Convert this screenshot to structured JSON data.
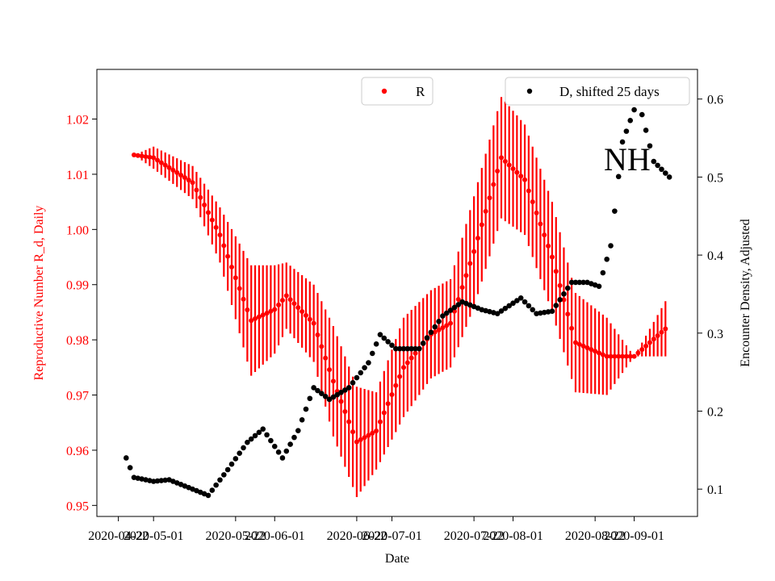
{
  "chart_data": {
    "type": "scatter",
    "xlabel": "Date",
    "ylabel_left": "Reproductive Number R_d, Daily",
    "ylabel_right": "Encounter Density, Adjusted",
    "annotation": "NH",
    "ylim_left": [
      0.948,
      1.029
    ],
    "ylim_right": [
      0.065,
      0.638
    ],
    "x_ticks": [
      "2020-04-22",
      "2020-05-01",
      "2020-05-22",
      "2020-06-01",
      "2020-06-22",
      "2020-07-01",
      "2020-07-22",
      "2020-08-01",
      "2020-08-22",
      "2020-09-01"
    ],
    "y_ticks_left": [
      "0.95",
      "0.96",
      "0.97",
      "0.98",
      "0.99",
      "1.00",
      "1.01",
      "1.02"
    ],
    "y_ticks_right": [
      "0.1",
      "0.2",
      "0.3",
      "0.4",
      "0.5",
      "0.6"
    ],
    "colors": {
      "R": "#ff0000",
      "D": "#000000",
      "left_axis": "#ff0000",
      "right_axis": "#000000"
    },
    "legend": [
      {
        "label": "R",
        "color": "#ff0000",
        "placement": "upper-center"
      },
      {
        "label": "D, shifted 25 days",
        "color": "#000000",
        "placement": "upper-right"
      }
    ],
    "R_series": {
      "name": "R",
      "axis": "left",
      "x": [
        "2020-04-26",
        "2020-05-01",
        "2020-05-11",
        "2020-05-18",
        "2020-05-26",
        "2020-06-01",
        "2020-06-04",
        "2020-06-11",
        "2020-06-16",
        "2020-06-22",
        "2020-06-27",
        "2020-07-04",
        "2020-07-11",
        "2020-07-16",
        "2020-07-22",
        "2020-07-29",
        "2020-08-04",
        "2020-08-11",
        "2020-08-17",
        "2020-08-25",
        "2020-09-01",
        "2020-09-09"
      ],
      "y": [
        1.0135,
        1.013,
        1.0085,
        0.999,
        0.9835,
        0.9855,
        0.988,
        0.983,
        0.9725,
        0.9615,
        0.9635,
        0.975,
        0.981,
        0.983,
        0.996,
        1.013,
        1.009,
        0.995,
        0.9795,
        0.977,
        0.977,
        0.982
      ],
      "err": [
        0.0,
        0.002,
        0.003,
        0.005,
        0.01,
        0.008,
        0.006,
        0.007,
        0.01,
        0.01,
        0.007,
        0.009,
        0.008,
        0.008,
        0.01,
        0.011,
        0.01,
        0.01,
        0.009,
        0.007,
        0.0,
        0.005
      ]
    },
    "D_series": {
      "name": "D, shifted 25 days",
      "axis": "right",
      "x": [
        "2020-04-24",
        "2020-04-26",
        "2020-05-01",
        "2020-05-05",
        "2020-05-11",
        "2020-05-15",
        "2020-05-20",
        "2020-05-25",
        "2020-05-29",
        "2020-06-03",
        "2020-06-07",
        "2020-06-11",
        "2020-06-15",
        "2020-06-20",
        "2020-06-25",
        "2020-06-28",
        "2020-07-02",
        "2020-07-08",
        "2020-07-14",
        "2020-07-19",
        "2020-07-24",
        "2020-07-28",
        "2020-08-03",
        "2020-08-07",
        "2020-08-11",
        "2020-08-16",
        "2020-08-20",
        "2020-08-23",
        "2020-08-26",
        "2020-08-29",
        "2020-09-02",
        "2020-09-06",
        "2020-09-10"
      ],
      "y": [
        0.14,
        0.115,
        0.11,
        0.112,
        0.1,
        0.092,
        0.125,
        0.16,
        0.177,
        0.14,
        0.175,
        0.23,
        0.215,
        0.23,
        0.262,
        0.298,
        0.28,
        0.28,
        0.322,
        0.34,
        0.33,
        0.325,
        0.345,
        0.325,
        0.328,
        0.365,
        0.365,
        0.36,
        0.412,
        0.545,
        0.6,
        0.52,
        0.5
      ]
    }
  }
}
